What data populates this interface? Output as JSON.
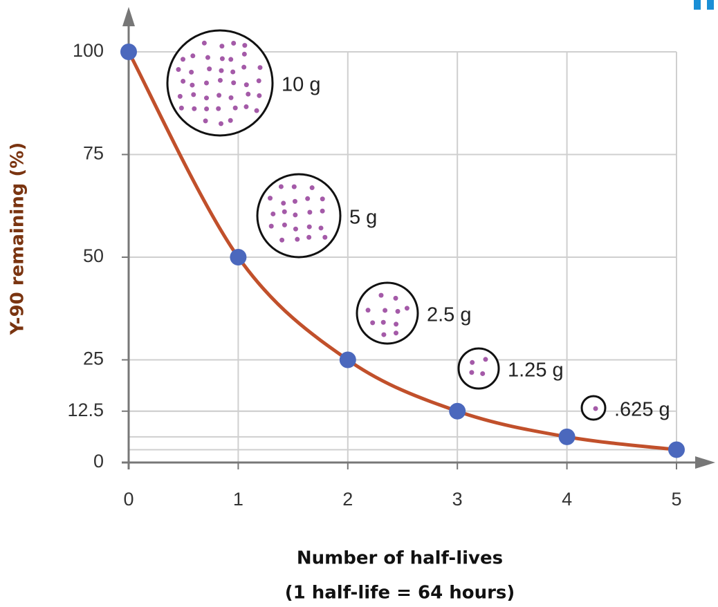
{
  "chart_data": {
    "type": "line",
    "y_label": "Y-90 remaining (%)",
    "x_label": [
      "Number of half-lives",
      "(1 half-life = 64 hours)"
    ],
    "x": [
      0,
      1,
      2,
      3,
      4,
      5
    ],
    "values": [
      100,
      50,
      25,
      12.5,
      6.25,
      3.125
    ],
    "line_color": "#c1502b",
    "marker_color": "#4b68bd",
    "xlim": [
      0,
      5
    ],
    "ylim": [
      0,
      100
    ],
    "xticks": [
      0,
      1,
      2,
      3,
      4,
      5
    ],
    "yticks": [
      0,
      12.5,
      25,
      50,
      75,
      100
    ],
    "grid": true,
    "annotations": [
      "10 g",
      "5 g",
      "2.5 g",
      "1.25 g",
      ".625 g"
    ]
  }
}
